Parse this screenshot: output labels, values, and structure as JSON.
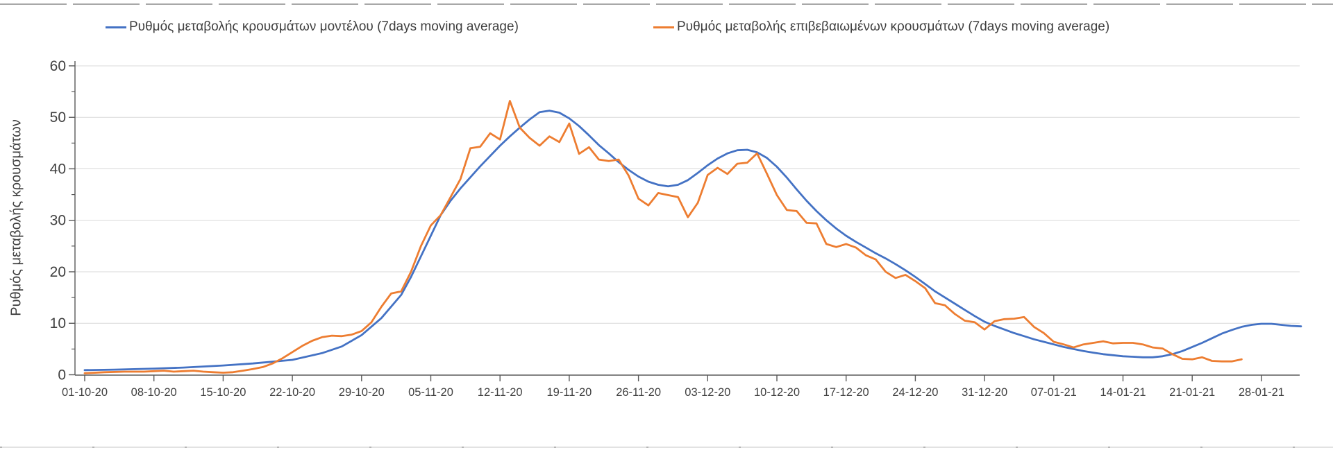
{
  "page": {
    "background": "#ffffff"
  },
  "legend": {
    "items": [
      {
        "key": "model",
        "label": "Ρυθμός μεταβολής κρουσμάτων μοντέλου (7days moving average)",
        "color": "#4472C4"
      },
      {
        "key": "confirmed",
        "label": "Ρυθμός μεταβολής επιβεβαιωμένων κρουσμάτων (7days moving average)",
        "color": "#ED7D31"
      }
    ]
  },
  "chart_data": {
    "type": "line",
    "title": "",
    "xlabel": "",
    "ylabel": "Ρυθμός μεταβολής κρουσμάτων",
    "ylim": [
      0,
      60
    ],
    "y_ticks": [
      0,
      10,
      20,
      30,
      40,
      50,
      60
    ],
    "y_minor_tick_step": 5,
    "grid": "horizontal-only",
    "grid_color": "#d9d9d9",
    "axis_color": "#595959",
    "tick_label_color": "#404040",
    "legend_position": "top",
    "x_tick_interval_days": 7,
    "x_tick_labels": [
      "01-10-20",
      "08-10-20",
      "15-10-20",
      "22-10-20",
      "29-10-20",
      "05-11-20",
      "12-11-20",
      "19-11-20",
      "26-11-20",
      "03-12-20",
      "10-12-20",
      "17-12-20",
      "24-12-20",
      "31-12-20",
      "07-01-21",
      "14-01-21",
      "21-01-21",
      "28-01-21"
    ],
    "x_unit": "days since 01-10-20",
    "x_range_days": [
      0,
      123
    ],
    "series": [
      {
        "key": "model",
        "name": "Ρυθμός μεταβολής κρουσμάτων μοντέλου (7days moving average)",
        "color": "#4472C4",
        "points": [
          [
            0,
            0.9
          ],
          [
            3,
            1.0
          ],
          [
            7,
            1.2
          ],
          [
            10,
            1.4
          ],
          [
            14,
            1.8
          ],
          [
            17,
            2.2
          ],
          [
            21,
            2.9
          ],
          [
            24,
            4.2
          ],
          [
            26,
            5.5
          ],
          [
            28,
            7.7
          ],
          [
            30,
            11.0
          ],
          [
            32,
            15.5
          ],
          [
            33,
            19.0
          ],
          [
            34,
            23.0
          ],
          [
            35,
            27.0
          ],
          [
            36,
            31.0
          ],
          [
            37,
            33.8
          ],
          [
            38,
            36.2
          ],
          [
            40,
            40.5
          ],
          [
            42,
            44.5
          ],
          [
            43,
            46.3
          ],
          [
            44,
            48.0
          ],
          [
            45,
            49.6
          ],
          [
            46,
            51.0
          ],
          [
            47,
            51.3
          ],
          [
            48,
            50.9
          ],
          [
            49,
            49.8
          ],
          [
            50,
            48.3
          ],
          [
            51,
            46.5
          ],
          [
            52,
            44.6
          ],
          [
            53,
            43.0
          ],
          [
            54,
            41.3
          ],
          [
            55,
            39.8
          ],
          [
            56,
            38.5
          ],
          [
            57,
            37.5
          ],
          [
            58,
            36.9
          ],
          [
            59,
            36.6
          ],
          [
            60,
            36.9
          ],
          [
            61,
            37.8
          ],
          [
            62,
            39.2
          ],
          [
            63,
            40.7
          ],
          [
            64,
            42.0
          ],
          [
            65,
            43.0
          ],
          [
            66,
            43.6
          ],
          [
            67,
            43.7
          ],
          [
            68,
            43.2
          ],
          [
            69,
            42.1
          ],
          [
            70,
            40.4
          ],
          [
            71,
            38.3
          ],
          [
            72,
            36.0
          ],
          [
            73,
            33.8
          ],
          [
            74,
            31.8
          ],
          [
            75,
            30.0
          ],
          [
            76,
            28.4
          ],
          [
            77,
            27.0
          ],
          [
            78,
            25.8
          ],
          [
            79,
            24.7
          ],
          [
            80,
            23.6
          ],
          [
            81,
            22.6
          ],
          [
            82,
            21.5
          ],
          [
            83,
            20.3
          ],
          [
            84,
            19.0
          ],
          [
            85,
            17.6
          ],
          [
            86,
            16.2
          ],
          [
            87,
            15.0
          ],
          [
            88,
            13.8
          ],
          [
            89,
            12.6
          ],
          [
            90,
            11.4
          ],
          [
            91,
            10.3
          ],
          [
            92,
            9.5
          ],
          [
            93,
            8.8
          ],
          [
            94,
            8.1
          ],
          [
            95,
            7.5
          ],
          [
            96,
            6.9
          ],
          [
            97,
            6.4
          ],
          [
            98,
            5.9
          ],
          [
            99,
            5.4
          ],
          [
            100,
            5.0
          ],
          [
            101,
            4.6
          ],
          [
            102,
            4.3
          ],
          [
            103,
            4.0
          ],
          [
            104,
            3.8
          ],
          [
            105,
            3.6
          ],
          [
            106,
            3.5
          ],
          [
            107,
            3.4
          ],
          [
            108,
            3.4
          ],
          [
            109,
            3.6
          ],
          [
            110,
            4.0
          ],
          [
            111,
            4.6
          ],
          [
            112,
            5.4
          ],
          [
            113,
            6.2
          ],
          [
            114,
            7.1
          ],
          [
            115,
            8.0
          ],
          [
            116,
            8.7
          ],
          [
            117,
            9.3
          ],
          [
            118,
            9.7
          ],
          [
            119,
            9.9
          ],
          [
            120,
            9.9
          ],
          [
            121,
            9.7
          ],
          [
            122,
            9.5
          ],
          [
            123,
            9.4
          ]
        ]
      },
      {
        "key": "confirmed",
        "name": "Ρυθμός μεταβολής επιβεβαιωμένων κρουσμάτων (7days moving average)",
        "color": "#ED7D31",
        "points": [
          [
            0,
            0.3
          ],
          [
            2,
            0.5
          ],
          [
            4,
            0.6
          ],
          [
            6,
            0.6
          ],
          [
            7,
            0.7
          ],
          [
            8,
            0.8
          ],
          [
            9,
            0.6
          ],
          [
            10,
            0.7
          ],
          [
            11,
            0.8
          ],
          [
            12,
            0.6
          ],
          [
            13,
            0.5
          ],
          [
            14,
            0.4
          ],
          [
            15,
            0.5
          ],
          [
            16,
            0.8
          ],
          [
            17,
            1.1
          ],
          [
            18,
            1.5
          ],
          [
            19,
            2.2
          ],
          [
            20,
            3.2
          ],
          [
            21,
            4.4
          ],
          [
            22,
            5.6
          ],
          [
            23,
            6.6
          ],
          [
            24,
            7.3
          ],
          [
            25,
            7.6
          ],
          [
            26,
            7.5
          ],
          [
            27,
            7.8
          ],
          [
            28,
            8.5
          ],
          [
            29,
            10.2
          ],
          [
            30,
            13.2
          ],
          [
            31,
            15.8
          ],
          [
            32,
            16.2
          ],
          [
            33,
            20.0
          ],
          [
            34,
            25.0
          ],
          [
            35,
            29.0
          ],
          [
            36,
            31.0
          ],
          [
            37,
            34.5
          ],
          [
            38,
            38.0
          ],
          [
            39,
            44.0
          ],
          [
            40,
            44.3
          ],
          [
            41,
            46.9
          ],
          [
            42,
            45.7
          ],
          [
            43,
            53.2
          ],
          [
            44,
            48.0
          ],
          [
            45,
            46.0
          ],
          [
            46,
            44.5
          ],
          [
            47,
            46.3
          ],
          [
            48,
            45.2
          ],
          [
            49,
            48.8
          ],
          [
            50,
            42.9
          ],
          [
            51,
            44.2
          ],
          [
            52,
            41.8
          ],
          [
            53,
            41.5
          ],
          [
            54,
            41.8
          ],
          [
            55,
            38.7
          ],
          [
            56,
            34.2
          ],
          [
            57,
            32.9
          ],
          [
            58,
            35.3
          ],
          [
            59,
            34.9
          ],
          [
            60,
            34.5
          ],
          [
            61,
            30.6
          ],
          [
            62,
            33.4
          ],
          [
            63,
            38.8
          ],
          [
            64,
            40.2
          ],
          [
            65,
            39.0
          ],
          [
            66,
            41.0
          ],
          [
            67,
            41.2
          ],
          [
            68,
            43.0
          ],
          [
            69,
            39.0
          ],
          [
            70,
            34.9
          ],
          [
            71,
            32.0
          ],
          [
            72,
            31.8
          ],
          [
            73,
            29.5
          ],
          [
            74,
            29.4
          ],
          [
            75,
            25.4
          ],
          [
            76,
            24.8
          ],
          [
            77,
            25.4
          ],
          [
            78,
            24.7
          ],
          [
            79,
            23.2
          ],
          [
            80,
            22.4
          ],
          [
            81,
            20.0
          ],
          [
            82,
            18.8
          ],
          [
            83,
            19.4
          ],
          [
            84,
            18.2
          ],
          [
            85,
            16.8
          ],
          [
            86,
            13.9
          ],
          [
            87,
            13.5
          ],
          [
            88,
            11.8
          ],
          [
            89,
            10.5
          ],
          [
            90,
            10.2
          ],
          [
            91,
            8.8
          ],
          [
            92,
            10.4
          ],
          [
            93,
            10.8
          ],
          [
            94,
            10.9
          ],
          [
            95,
            11.2
          ],
          [
            96,
            9.3
          ],
          [
            97,
            8.1
          ],
          [
            98,
            6.4
          ],
          [
            99,
            5.9
          ],
          [
            100,
            5.3
          ],
          [
            101,
            5.9
          ],
          [
            102,
            6.2
          ],
          [
            103,
            6.5
          ],
          [
            104,
            6.1
          ],
          [
            105,
            6.2
          ],
          [
            106,
            6.2
          ],
          [
            107,
            5.9
          ],
          [
            108,
            5.3
          ],
          [
            109,
            5.1
          ],
          [
            110,
            4.0
          ],
          [
            111,
            3.1
          ],
          [
            112,
            3.0
          ],
          [
            113,
            3.4
          ],
          [
            114,
            2.7
          ],
          [
            115,
            2.6
          ],
          [
            116,
            2.6
          ],
          [
            117,
            3.0
          ]
        ]
      }
    ]
  }
}
